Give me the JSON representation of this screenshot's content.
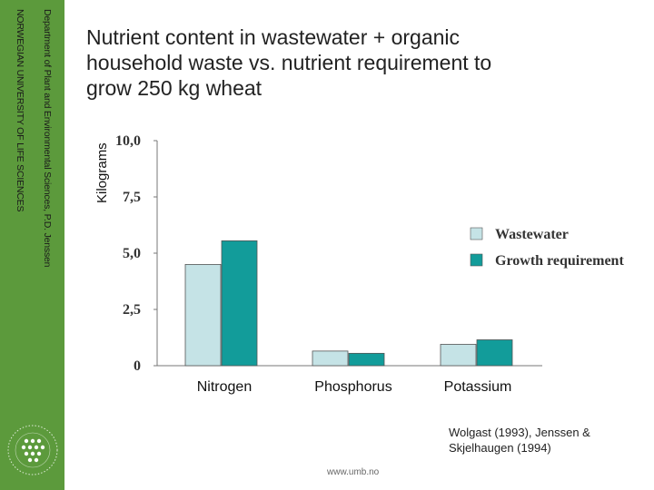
{
  "sidebar": {
    "department": "Department of Plant and Environmental Sciences, P.D. Jenssen",
    "university": "NORWEGIAN UNIVERSITY OF LIFE SCIENCES"
  },
  "title": "Nutrient content in wastewater + organic household waste vs. nutrient requirement to grow 250 kg wheat",
  "source": "Wolgast (1993), Jenssen & Skjelhaugen (1994)",
  "footer": "www.umb.no",
  "colors": {
    "sidebar": "#5c9a3c",
    "wastewater": "#c5e3e6",
    "growth": "#129c9a"
  },
  "chart_data": {
    "type": "bar",
    "categories": [
      "Nitrogen",
      "Phosphorus",
      "Potassium"
    ],
    "series": [
      {
        "name": "Wastewater",
        "color": "#c5e3e6",
        "values": [
          4.5,
          0.65,
          0.95
        ]
      },
      {
        "name": "Growth requirement",
        "color": "#129c9a",
        "values": [
          5.55,
          0.55,
          1.15
        ]
      }
    ],
    "ylabel": "Kilograms",
    "yticks": [
      "0",
      "2,5",
      "5,0",
      "7,5",
      "10,0"
    ],
    "ylim": [
      0,
      10
    ],
    "legend": "right",
    "grid": false
  }
}
